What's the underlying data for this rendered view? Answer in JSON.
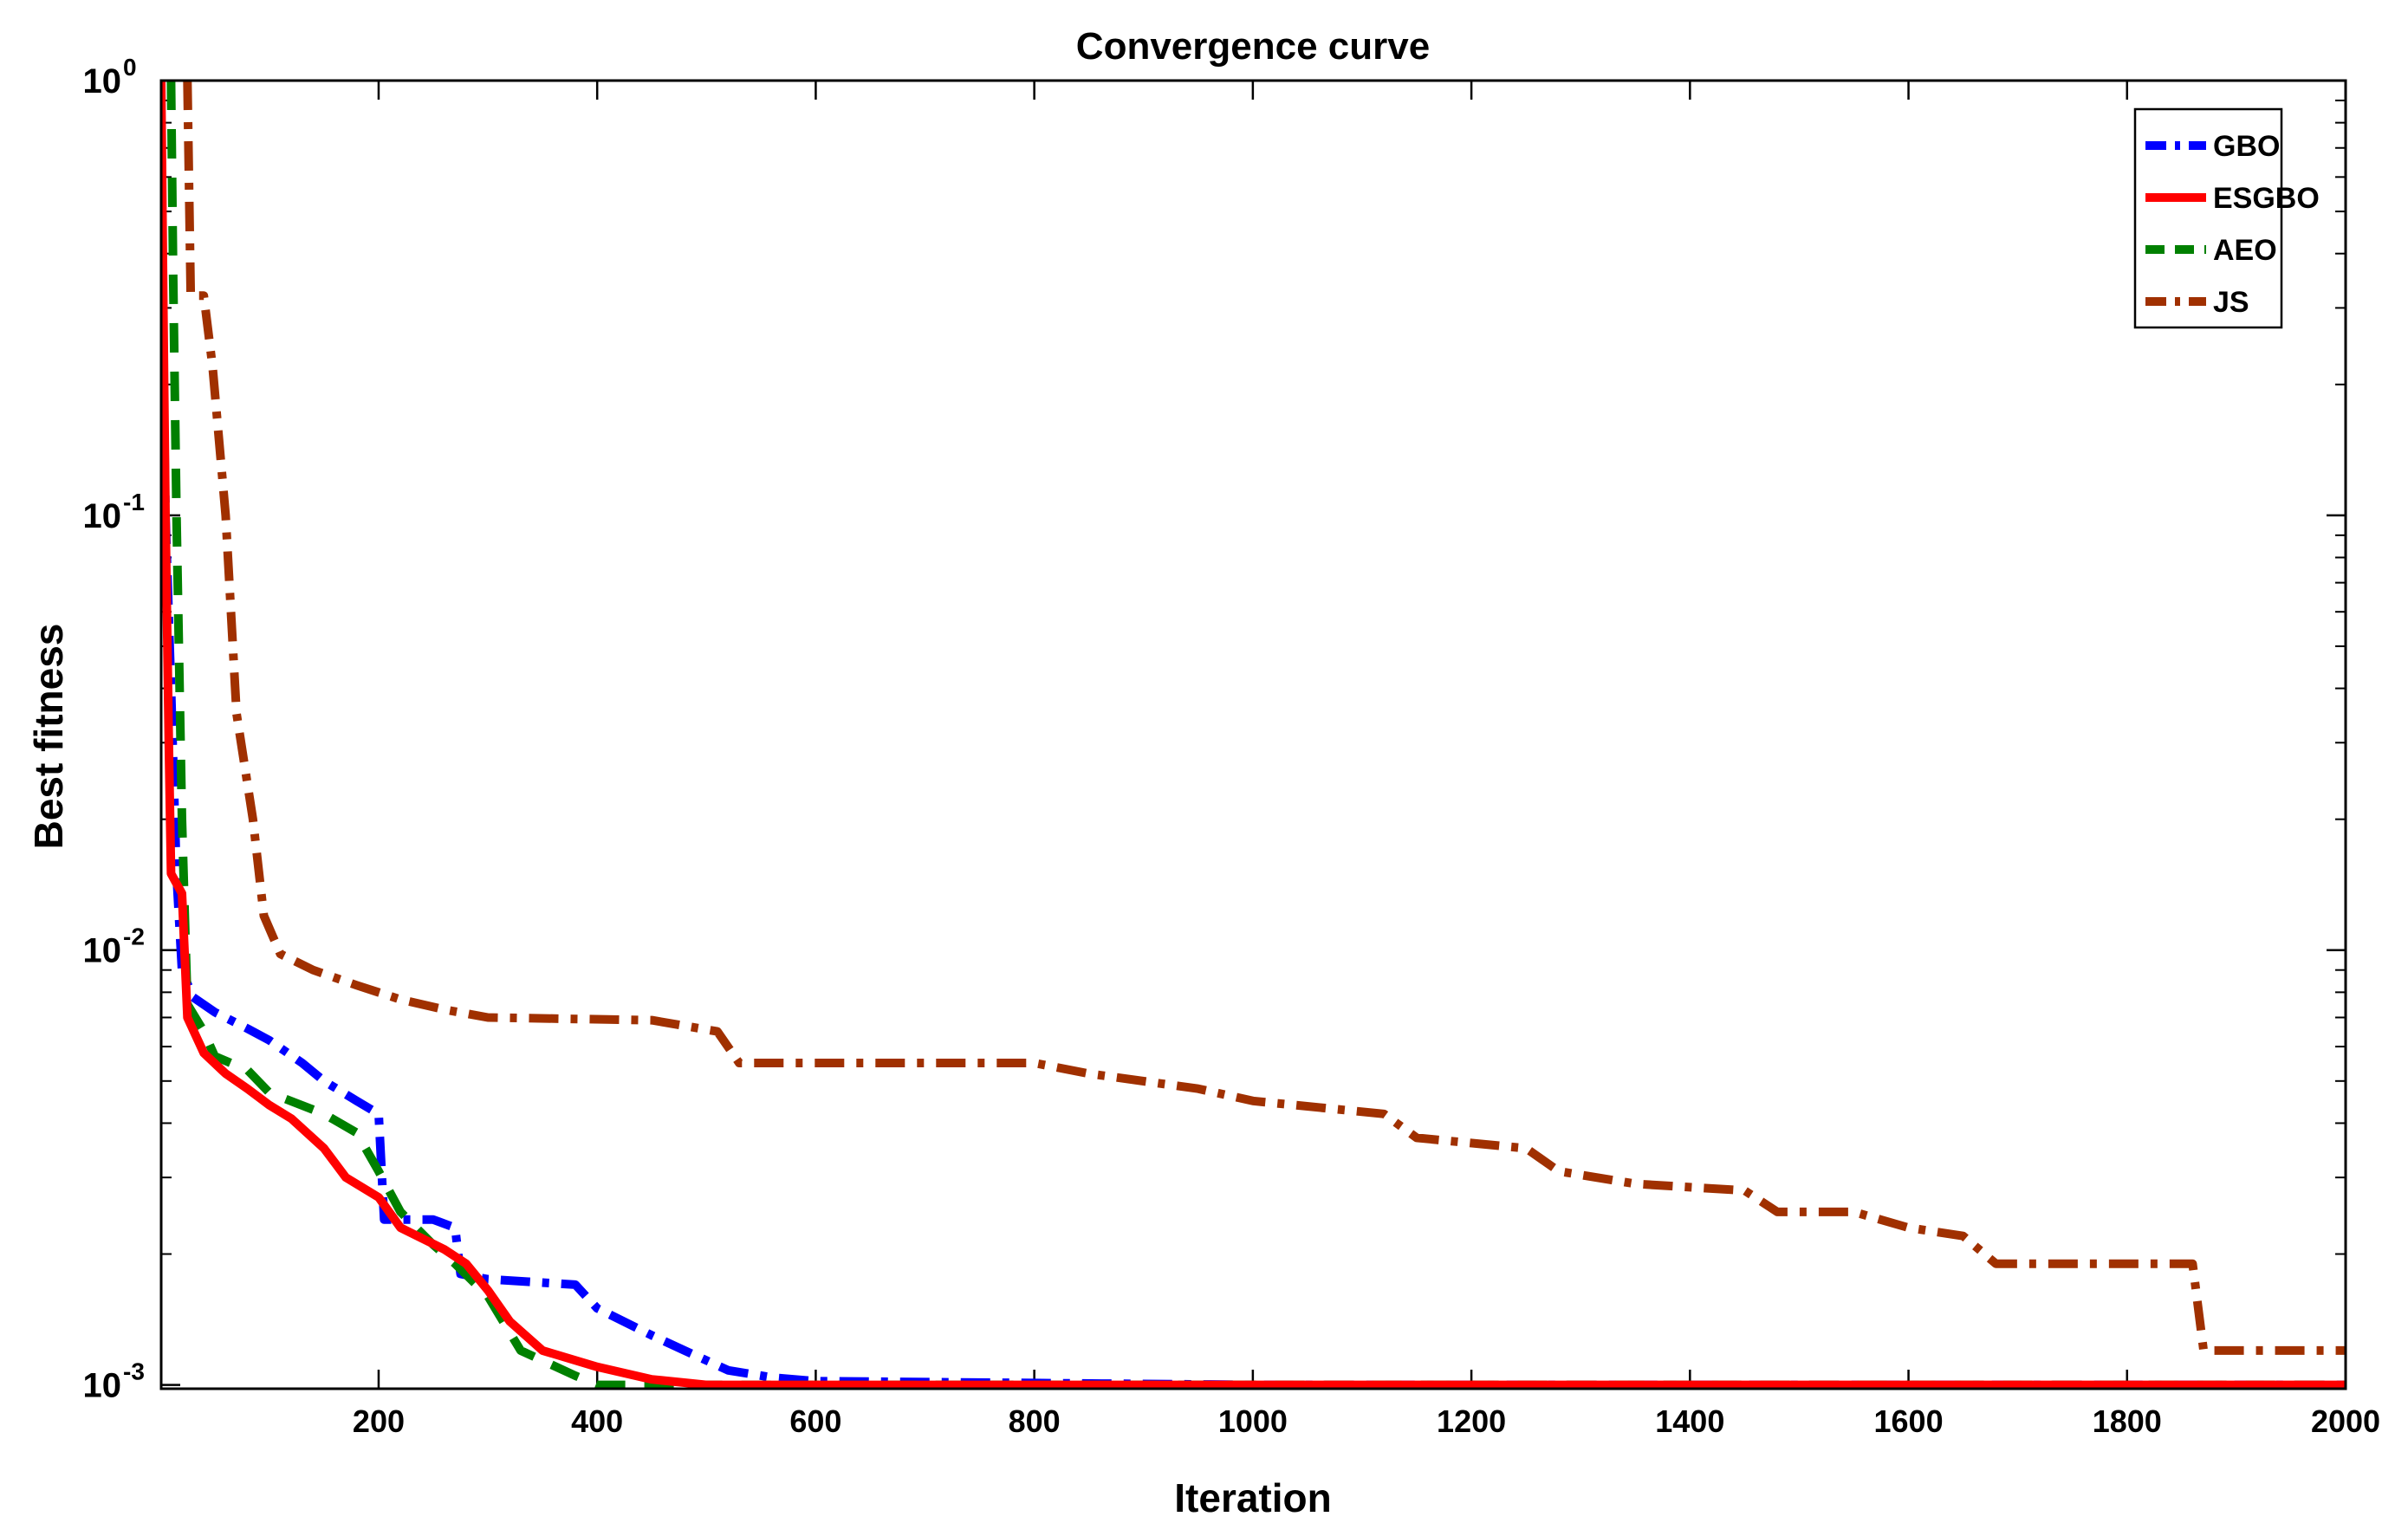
{
  "chart_data": {
    "type": "line",
    "title": "Convergence curve",
    "xlabel": "Iteration",
    "ylabel": "Best fitness",
    "xlim": [
      1,
      2000
    ],
    "ylim": [
      0.00098,
      1
    ],
    "yscale": "log",
    "xticks": [
      200,
      400,
      600,
      800,
      1000,
      1200,
      1400,
      1600,
      1800,
      2000
    ],
    "yticks": [
      {
        "value": 0.001,
        "base": "10",
        "exp": "-3"
      },
      {
        "value": 0.01,
        "base": "10",
        "exp": "-2"
      },
      {
        "value": 0.1,
        "base": "10",
        "exp": "-1"
      },
      {
        "value": 1,
        "base": "10",
        "exp": "0"
      }
    ],
    "legend_position": "top-right",
    "series": [
      {
        "name": "GBO",
        "color": "#0000ff",
        "dash": "dash-dot",
        "points": [
          [
            1,
            0.5
          ],
          [
            5,
            0.1
          ],
          [
            10,
            0.04
          ],
          [
            15,
            0.015
          ],
          [
            20,
            0.009
          ],
          [
            30,
            0.0078
          ],
          [
            50,
            0.0072
          ],
          [
            80,
            0.0066
          ],
          [
            100,
            0.0062
          ],
          [
            130,
            0.0055
          ],
          [
            150,
            0.005
          ],
          [
            180,
            0.0045
          ],
          [
            200,
            0.0042
          ],
          [
            205,
            0.0024
          ],
          [
            250,
            0.0024
          ],
          [
            270,
            0.0023
          ],
          [
            275,
            0.0018
          ],
          [
            300,
            0.00175
          ],
          [
            380,
            0.0017
          ],
          [
            400,
            0.0015
          ],
          [
            450,
            0.0013
          ],
          [
            480,
            0.0012
          ],
          [
            520,
            0.00108
          ],
          [
            560,
            0.00104
          ],
          [
            600,
            0.00102
          ],
          [
            800,
            0.00101
          ],
          [
            1000,
            0.001
          ],
          [
            2000,
            0.001
          ]
        ]
      },
      {
        "name": "ESGBO",
        "color": "#ff0000",
        "dash": "solid",
        "points": [
          [
            1,
            1
          ],
          [
            3,
            0.3
          ],
          [
            5,
            0.1
          ],
          [
            8,
            0.03
          ],
          [
            10,
            0.015
          ],
          [
            20,
            0.0135
          ],
          [
            25,
            0.007
          ],
          [
            40,
            0.0058
          ],
          [
            60,
            0.0052
          ],
          [
            80,
            0.0048
          ],
          [
            100,
            0.0044
          ],
          [
            120,
            0.0041
          ],
          [
            150,
            0.0035
          ],
          [
            170,
            0.003
          ],
          [
            200,
            0.0027
          ],
          [
            220,
            0.0023
          ],
          [
            260,
            0.00205
          ],
          [
            280,
            0.0019
          ],
          [
            300,
            0.00165
          ],
          [
            320,
            0.0014
          ],
          [
            350,
            0.0012
          ],
          [
            400,
            0.0011
          ],
          [
            450,
            0.00103
          ],
          [
            500,
            0.001
          ],
          [
            2000,
            0.001
          ]
        ]
      },
      {
        "name": "AEO",
        "color": "#008000",
        "dash": "dashed",
        "points": [
          [
            10,
            1
          ],
          [
            12,
            0.35
          ],
          [
            15,
            0.1
          ],
          [
            20,
            0.02
          ],
          [
            25,
            0.0075
          ],
          [
            40,
            0.0065
          ],
          [
            50,
            0.0057
          ],
          [
            80,
            0.0053
          ],
          [
            100,
            0.0047
          ],
          [
            150,
            0.0042
          ],
          [
            180,
            0.0038
          ],
          [
            200,
            0.0031
          ],
          [
            220,
            0.0025
          ],
          [
            250,
            0.0021
          ],
          [
            270,
            0.0019
          ],
          [
            300,
            0.0016
          ],
          [
            330,
            0.0012
          ],
          [
            380,
            0.00105
          ],
          [
            400,
            0.001
          ],
          [
            2000,
            0.001
          ]
        ]
      },
      {
        "name": "JS",
        "color": "#a03000",
        "dash": "dash-dot",
        "points": [
          [
            25,
            1
          ],
          [
            28,
            0.32
          ],
          [
            40,
            0.32
          ],
          [
            48,
            0.22
          ],
          [
            60,
            0.1
          ],
          [
            70,
            0.035
          ],
          [
            85,
            0.02
          ],
          [
            95,
            0.012
          ],
          [
            110,
            0.0098
          ],
          [
            140,
            0.009
          ],
          [
            180,
            0.0083
          ],
          [
            220,
            0.0077
          ],
          [
            260,
            0.0073
          ],
          [
            300,
            0.007
          ],
          [
            450,
            0.0069
          ],
          [
            510,
            0.0065
          ],
          [
            530,
            0.0055
          ],
          [
            800,
            0.0055
          ],
          [
            850,
            0.0052
          ],
          [
            950,
            0.0048
          ],
          [
            1000,
            0.0045
          ],
          [
            1120,
            0.0042
          ],
          [
            1150,
            0.0037
          ],
          [
            1250,
            0.0035
          ],
          [
            1280,
            0.0031
          ],
          [
            1350,
            0.0029
          ],
          [
            1450,
            0.0028
          ],
          [
            1480,
            0.0025
          ],
          [
            1550,
            0.0025
          ],
          [
            1600,
            0.0023
          ],
          [
            1650,
            0.0022
          ],
          [
            1680,
            0.0019
          ],
          [
            1860,
            0.0019
          ],
          [
            1870,
            0.0012
          ],
          [
            2000,
            0.0012
          ]
        ]
      }
    ]
  }
}
